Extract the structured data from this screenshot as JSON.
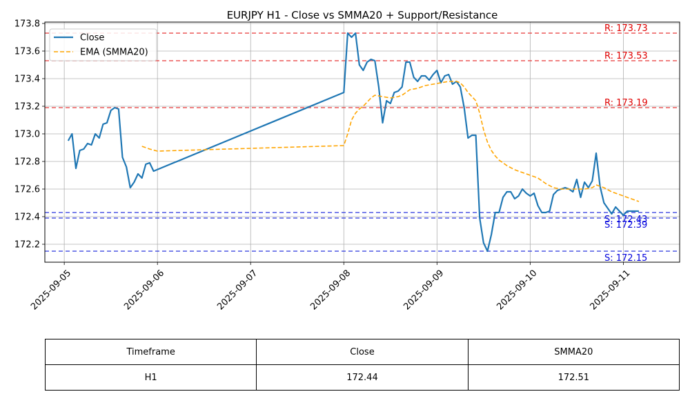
{
  "chart_data": {
    "type": "line",
    "title": "EURJPY H1 - Close vs SMMA20 + Support/Resistance",
    "xlabel": "",
    "ylabel": "",
    "x_ticks": [
      "2025-09-05",
      "2025-09-06",
      "2025-09-07",
      "2025-09-08",
      "2025-09-09",
      "2025-09-10",
      "2025-09-11"
    ],
    "y_ticks": [
      "172.2",
      "172.4",
      "172.6",
      "172.8",
      "173.0",
      "173.2",
      "173.4",
      "173.6",
      "173.8"
    ],
    "xlim": [
      "2025-09-04 19:00",
      "2025-09-11 14:30"
    ],
    "ylim": [
      172.07,
      173.81
    ],
    "grid": true,
    "legend_position": "top-left",
    "series": [
      {
        "name": "Close",
        "color": "#1f77b4",
        "style": "solid",
        "points": [
          [
            "2025-09-05 01:00",
            172.95
          ],
          [
            "2025-09-05 02:00",
            173.0
          ],
          [
            "2025-09-05 03:00",
            172.75
          ],
          [
            "2025-09-05 04:00",
            172.88
          ],
          [
            "2025-09-05 05:00",
            172.89
          ],
          [
            "2025-09-05 06:00",
            172.93
          ],
          [
            "2025-09-05 07:00",
            172.92
          ],
          [
            "2025-09-05 08:00",
            173.0
          ],
          [
            "2025-09-05 09:00",
            172.97
          ],
          [
            "2025-09-05 10:00",
            173.07
          ],
          [
            "2025-09-05 11:00",
            173.08
          ],
          [
            "2025-09-05 12:00",
            173.17
          ],
          [
            "2025-09-05 13:00",
            173.19
          ],
          [
            "2025-09-05 14:00",
            173.18
          ],
          [
            "2025-09-05 15:00",
            172.83
          ],
          [
            "2025-09-05 16:00",
            172.76
          ],
          [
            "2025-09-05 17:00",
            172.61
          ],
          [
            "2025-09-05 18:00",
            172.65
          ],
          [
            "2025-09-05 19:00",
            172.71
          ],
          [
            "2025-09-05 20:00",
            172.68
          ],
          [
            "2025-09-05 21:00",
            172.78
          ],
          [
            "2025-09-05 22:00",
            172.79
          ],
          [
            "2025-09-05 23:00",
            172.73
          ],
          [
            "2025-09-08 00:00",
            173.3
          ],
          [
            "2025-09-08 01:00",
            173.73
          ],
          [
            "2025-09-08 02:00",
            173.7
          ],
          [
            "2025-09-08 03:00",
            173.73
          ],
          [
            "2025-09-08 04:00",
            173.5
          ],
          [
            "2025-09-08 05:00",
            173.46
          ],
          [
            "2025-09-08 06:00",
            173.52
          ],
          [
            "2025-09-08 07:00",
            173.54
          ],
          [
            "2025-09-08 08:00",
            173.53
          ],
          [
            "2025-09-08 09:00",
            173.34
          ],
          [
            "2025-09-08 10:00",
            173.08
          ],
          [
            "2025-09-08 11:00",
            173.24
          ],
          [
            "2025-09-08 12:00",
            173.22
          ],
          [
            "2025-09-08 13:00",
            173.3
          ],
          [
            "2025-09-08 14:00",
            173.31
          ],
          [
            "2025-09-08 15:00",
            173.34
          ],
          [
            "2025-09-08 16:00",
            173.52
          ],
          [
            "2025-09-08 17:00",
            173.52
          ],
          [
            "2025-09-08 18:00",
            173.41
          ],
          [
            "2025-09-08 19:00",
            173.38
          ],
          [
            "2025-09-08 20:00",
            173.42
          ],
          [
            "2025-09-08 21:00",
            173.42
          ],
          [
            "2025-09-08 22:00",
            173.39
          ],
          [
            "2025-09-08 23:00",
            173.43
          ],
          [
            "2025-09-09 00:00",
            173.46
          ],
          [
            "2025-09-09 01:00",
            173.37
          ],
          [
            "2025-09-09 02:00",
            173.42
          ],
          [
            "2025-09-09 03:00",
            173.43
          ],
          [
            "2025-09-09 04:00",
            173.36
          ],
          [
            "2025-09-09 05:00",
            173.38
          ],
          [
            "2025-09-09 06:00",
            173.34
          ],
          [
            "2025-09-09 07:00",
            173.19
          ],
          [
            "2025-09-09 08:00",
            172.97
          ],
          [
            "2025-09-09 09:00",
            172.99
          ],
          [
            "2025-09-09 10:00",
            172.99
          ],
          [
            "2025-09-09 11:00",
            172.39
          ],
          [
            "2025-09-09 12:00",
            172.21
          ],
          [
            "2025-09-09 13:00",
            172.15
          ],
          [
            "2025-09-09 14:00",
            172.27
          ],
          [
            "2025-09-09 15:00",
            172.43
          ],
          [
            "2025-09-09 16:00",
            172.43
          ],
          [
            "2025-09-09 17:00",
            172.54
          ],
          [
            "2025-09-09 18:00",
            172.58
          ],
          [
            "2025-09-09 19:00",
            172.58
          ],
          [
            "2025-09-09 20:00",
            172.53
          ],
          [
            "2025-09-09 21:00",
            172.55
          ],
          [
            "2025-09-09 22:00",
            172.6
          ],
          [
            "2025-09-09 23:00",
            172.57
          ],
          [
            "2025-09-10 00:00",
            172.55
          ],
          [
            "2025-09-10 01:00",
            172.57
          ],
          [
            "2025-09-10 02:00",
            172.48
          ],
          [
            "2025-09-10 03:00",
            172.43
          ],
          [
            "2025-09-10 04:00",
            172.43
          ],
          [
            "2025-09-10 05:00",
            172.44
          ],
          [
            "2025-09-10 06:00",
            172.56
          ],
          [
            "2025-09-10 07:00",
            172.59
          ],
          [
            "2025-09-10 08:00",
            172.6
          ],
          [
            "2025-09-10 09:00",
            172.61
          ],
          [
            "2025-09-10 10:00",
            172.6
          ],
          [
            "2025-09-10 11:00",
            172.58
          ],
          [
            "2025-09-10 12:00",
            172.67
          ],
          [
            "2025-09-10 13:00",
            172.54
          ],
          [
            "2025-09-10 14:00",
            172.65
          ],
          [
            "2025-09-10 15:00",
            172.61
          ],
          [
            "2025-09-10 16:00",
            172.66
          ],
          [
            "2025-09-10 17:00",
            172.86
          ],
          [
            "2025-09-10 18:00",
            172.62
          ],
          [
            "2025-09-10 19:00",
            172.5
          ],
          [
            "2025-09-10 20:00",
            172.46
          ],
          [
            "2025-09-10 21:00",
            172.42
          ],
          [
            "2025-09-10 22:00",
            172.47
          ],
          [
            "2025-09-10 23:00",
            172.44
          ],
          [
            "2025-09-11 00:00",
            172.41
          ],
          [
            "2025-09-11 01:00",
            172.44
          ],
          [
            "2025-09-11 02:00",
            172.44
          ],
          [
            "2025-09-11 03:00",
            172.44
          ],
          [
            "2025-09-11 04:00",
            172.44
          ]
        ]
      },
      {
        "name": "EMA (SMMA20)",
        "color": "#ffa500",
        "style": "dashed",
        "points": [
          [
            "2025-09-05 20:00",
            172.91
          ],
          [
            "2025-09-05 22:00",
            172.89
          ],
          [
            "2025-09-06 00:00",
            172.875
          ],
          [
            "2025-09-08 00:00",
            172.915
          ],
          [
            "2025-09-08 01:00",
            173.0
          ],
          [
            "2025-09-08 02:00",
            173.1
          ],
          [
            "2025-09-08 03:00",
            173.15
          ],
          [
            "2025-09-08 04:00",
            173.18
          ],
          [
            "2025-09-08 05:00",
            173.2
          ],
          [
            "2025-09-08 06:00",
            173.23
          ],
          [
            "2025-09-08 07:00",
            173.26
          ],
          [
            "2025-09-08 08:00",
            173.28
          ],
          [
            "2025-09-08 10:00",
            173.27
          ],
          [
            "2025-09-08 12:00",
            173.26
          ],
          [
            "2025-09-08 14:00",
            173.27
          ],
          [
            "2025-09-08 15:00",
            173.28
          ],
          [
            "2025-09-08 16:00",
            173.3
          ],
          [
            "2025-09-08 17:00",
            173.32
          ],
          [
            "2025-09-08 19:00",
            173.33
          ],
          [
            "2025-09-08 21:00",
            173.35
          ],
          [
            "2025-09-08 23:00",
            173.36
          ],
          [
            "2025-09-09 01:00",
            173.37
          ],
          [
            "2025-09-09 03:00",
            173.38
          ],
          [
            "2025-09-09 05:00",
            173.38
          ],
          [
            "2025-09-09 06:00",
            173.37
          ],
          [
            "2025-09-09 07:00",
            173.34
          ],
          [
            "2025-09-09 08:00",
            173.3
          ],
          [
            "2025-09-09 09:00",
            173.27
          ],
          [
            "2025-09-09 10:00",
            173.24
          ],
          [
            "2025-09-09 11:00",
            173.15
          ],
          [
            "2025-09-09 12:00",
            173.03
          ],
          [
            "2025-09-09 13:00",
            172.94
          ],
          [
            "2025-09-09 14:00",
            172.88
          ],
          [
            "2025-09-09 15:00",
            172.84
          ],
          [
            "2025-09-09 16:00",
            172.81
          ],
          [
            "2025-09-09 18:00",
            172.77
          ],
          [
            "2025-09-09 20:00",
            172.74
          ],
          [
            "2025-09-09 22:00",
            172.72
          ],
          [
            "2025-09-10 00:00",
            172.7
          ],
          [
            "2025-09-10 02:00",
            172.68
          ],
          [
            "2025-09-10 04:00",
            172.64
          ],
          [
            "2025-09-10 06:00",
            172.61
          ],
          [
            "2025-09-10 08:00",
            172.6
          ],
          [
            "2025-09-10 10:00",
            172.6
          ],
          [
            "2025-09-10 12:00",
            172.6
          ],
          [
            "2025-09-10 14:00",
            172.6
          ],
          [
            "2025-09-10 16:00",
            172.61
          ],
          [
            "2025-09-10 17:00",
            172.63
          ],
          [
            "2025-09-10 19:00",
            172.61
          ],
          [
            "2025-09-10 21:00",
            172.58
          ],
          [
            "2025-09-10 23:00",
            172.56
          ],
          [
            "2025-09-11 01:00",
            172.54
          ],
          [
            "2025-09-11 02:00",
            172.53
          ],
          [
            "2025-09-11 04:00",
            172.51
          ]
        ]
      }
    ],
    "resistance_levels": [
      {
        "value": 173.73,
        "label": "R: 173.73",
        "color": "#e83a3a"
      },
      {
        "value": 173.53,
        "label": "R: 173.53",
        "color": "#e83a3a"
      },
      {
        "value": 173.19,
        "label": "R: 173.19",
        "color": "#e83a3a"
      }
    ],
    "support_levels": [
      {
        "value": 172.43,
        "label": "S: 172.43",
        "color": "#2f3ae0"
      },
      {
        "value": 172.39,
        "label": "S: 172.39",
        "color": "#2f3ae0"
      },
      {
        "value": 172.15,
        "label": "S: 172.15",
        "color": "#2f3ae0"
      }
    ]
  },
  "summary_table": {
    "headers": [
      "Timeframe",
      "Close",
      "SMMA20"
    ],
    "rows": [
      [
        "H1",
        "172.44",
        "172.51"
      ]
    ]
  }
}
